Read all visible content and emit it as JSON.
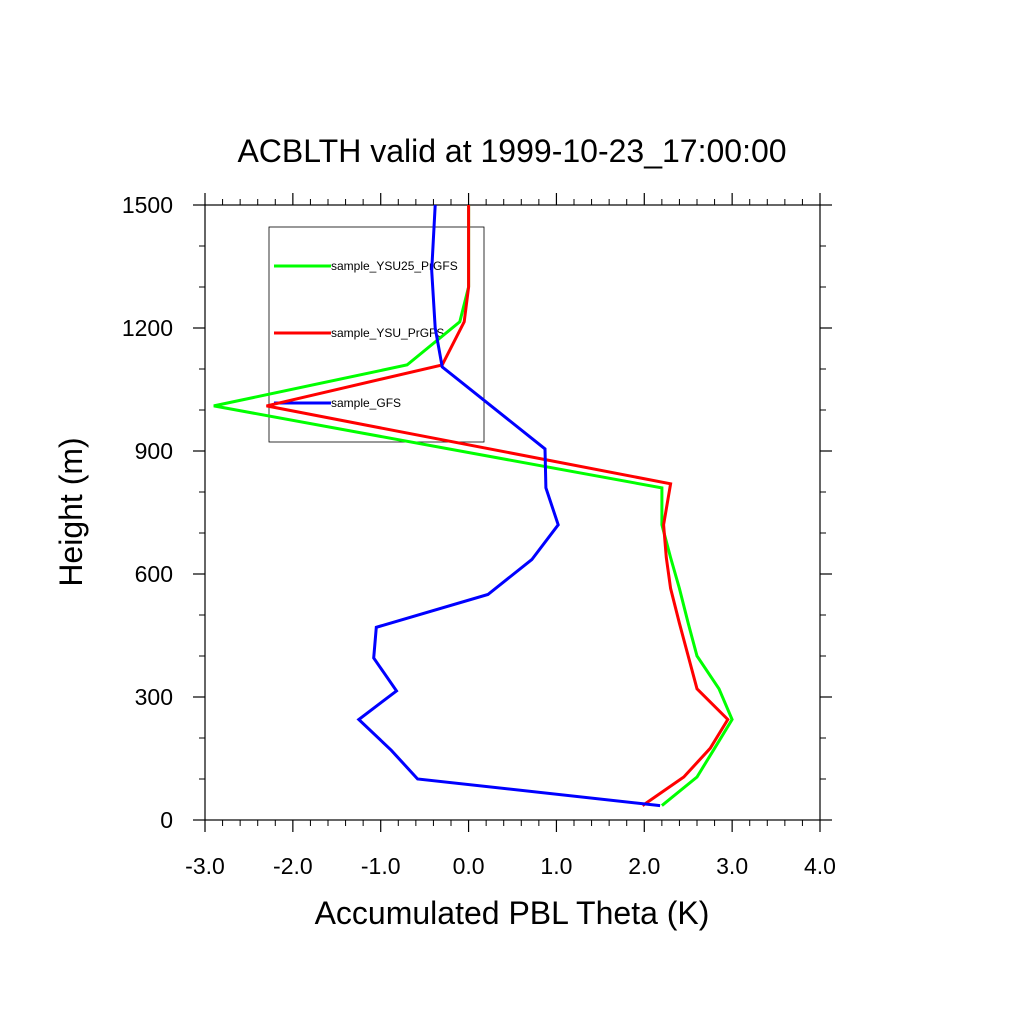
{
  "chart_data": {
    "type": "line",
    "title": "ACBLTH valid at 1999-10-23_17:00:00",
    "xlabel": "Accumulated PBL Theta (K)",
    "ylabel": "Height (m)",
    "xlim": [
      -3.0,
      4.0
    ],
    "ylim": [
      0,
      1500
    ],
    "xticks": [
      "-3.0",
      "-2.0",
      "-1.0",
      "0.0",
      "1.0",
      "2.0",
      "3.0",
      "4.0"
    ],
    "yticks": [
      "0",
      "300",
      "600",
      "900",
      "1200",
      "1500"
    ],
    "grid": false,
    "legend_position": "top-left",
    "series": [
      {
        "name": "sample_YSU25_PrGFS",
        "color": "#00ff00",
        "x": [
          2.2,
          2.6,
          2.8,
          3.0,
          2.85,
          2.6,
          2.5,
          2.4,
          2.3,
          2.2,
          2.2,
          -2.9,
          -0.7,
          -0.1,
          0.0,
          0.0
        ],
        "y": [
          35,
          105,
          175,
          245,
          320,
          400,
          480,
          565,
          640,
          720,
          810,
          1010,
          1110,
          1215,
          1300,
          1500
        ]
      },
      {
        "name": "sample_YSU_PrGFS",
        "color": "#ff0000",
        "x": [
          1.98,
          2.45,
          2.75,
          2.95,
          2.6,
          2.5,
          2.4,
          2.3,
          2.25,
          2.22,
          2.3,
          -2.3,
          -0.3,
          -0.05,
          0.0,
          0.0
        ],
        "y": [
          35,
          105,
          175,
          245,
          320,
          400,
          480,
          565,
          640,
          720,
          820,
          1010,
          1110,
          1215,
          1300,
          1500
        ]
      },
      {
        "name": "sample_GFS",
        "color": "#0000ff",
        "x": [
          2.18,
          -0.58,
          -0.88,
          -1.25,
          -0.82,
          -1.08,
          -1.05,
          0.22,
          0.72,
          1.02,
          0.88,
          0.87,
          -0.3,
          -0.38,
          -0.42,
          -0.38
        ],
        "y": [
          35,
          100,
          170,
          245,
          315,
          395,
          470,
          550,
          635,
          720,
          810,
          905,
          1105,
          1200,
          1340,
          1500
        ]
      }
    ]
  }
}
